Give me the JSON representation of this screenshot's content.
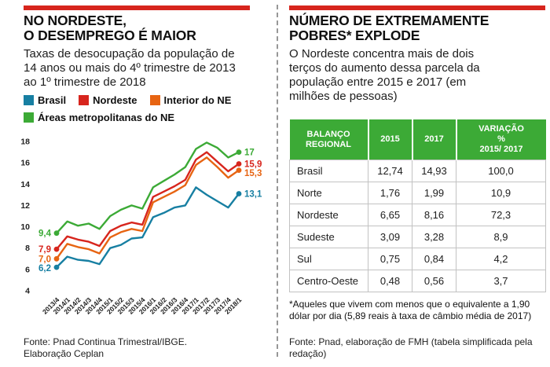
{
  "left_panel": {
    "title_line1": "NO NORDESTE,",
    "title_line2": "O DESEMPREGO É MAIOR",
    "subtitle": "Taxas de desocupação da população de 14 anos ou mais do 4º trimestre de 2013 ao 1º trimestre de 2018",
    "source_line1": "Fonte: Pnad Continua Trimestral/IBGE.",
    "source_line2": "Elaboração Ceplan"
  },
  "right_panel": {
    "title_line1": "NÚMERO DE EXTREMAMENTE",
    "title_line2": "POBRES* EXPLODE",
    "subtitle": "O Nordeste concentra mais de dois terços do aumento dessa parcela da população entre 2015 e 2017 (em milhões de pessoas)",
    "footnote": "*Aqueles que vivem com menos que o equivalente a 1,90 dólar por dia (5,89 reais à taxa de câmbio média de 2017)",
    "source": "Fonte: Pnad, elaboração de FMH (tabela simplificada pela redação)"
  },
  "colors": {
    "accent_red": "#d7251d",
    "table_green": "#3caa36",
    "brasil_teal": "#177fa2",
    "nordeste_red": "#d7251d",
    "interior_orange": "#e76412",
    "metropolitanas_green": "#3caa36",
    "divider_gray": "#979797"
  },
  "chart_data": [
    {
      "type": "line",
      "title": "NO NORDESTE, O DESEMPREGO É MAIOR",
      "xlabel": "",
      "ylabel": "",
      "ylim": [
        4,
        18
      ],
      "yticks": [
        4,
        6,
        8,
        10,
        12,
        14,
        16,
        18
      ],
      "grid": false,
      "legend_position": "top",
      "categories": [
        "2013/4",
        "2014/1",
        "2014/2",
        "2014/3",
        "2014/4",
        "2015/1",
        "2015/2",
        "2015/3",
        "2015/4",
        "2016/1",
        "2016/2",
        "2016/3",
        "2016/4",
        "2017/1",
        "2017/2",
        "2017/3",
        "2017/4",
        "2018/1"
      ],
      "series": [
        {
          "name": "Brasil",
          "color": "#177fa2",
          "start_label": "6,2",
          "end_label": "13,1",
          "values": [
            6.2,
            7.2,
            6.9,
            6.8,
            6.5,
            8.0,
            8.3,
            8.9,
            9.0,
            10.9,
            11.3,
            11.8,
            12.0,
            13.7,
            13.0,
            12.4,
            11.8,
            13.1
          ]
        },
        {
          "name": "Nordeste",
          "color": "#d7251d",
          "start_label": "7,9",
          "end_label": "15,9",
          "values": [
            7.9,
            9.1,
            8.8,
            8.6,
            8.2,
            9.6,
            10.1,
            10.4,
            10.2,
            12.8,
            13.3,
            13.8,
            14.4,
            16.3,
            17.0,
            16.1,
            15.2,
            15.9
          ]
        },
        {
          "name": "Interior do NE",
          "color": "#e76412",
          "start_label": "7,0",
          "end_label": "15,3",
          "values": [
            7.0,
            8.4,
            8.1,
            7.9,
            7.5,
            9.0,
            9.5,
            9.8,
            9.6,
            12.3,
            12.8,
            13.3,
            13.9,
            15.8,
            16.5,
            15.6,
            14.6,
            15.3
          ]
        },
        {
          "name": "Áreas metropolitanas do NE",
          "color": "#3caa36",
          "start_label": "9,4",
          "end_label": "17",
          "values": [
            9.4,
            10.5,
            10.1,
            10.3,
            9.8,
            11.0,
            11.6,
            12.0,
            11.7,
            13.7,
            14.3,
            14.9,
            15.6,
            17.3,
            17.9,
            17.4,
            16.5,
            17.0
          ]
        }
      ]
    },
    {
      "type": "table",
      "title": "NÚMERO DE EXTREMAMENTE POBRES* EXPLODE",
      "headers": [
        "BALANÇO\nREGIONAL",
        "2015",
        "2017",
        "VARIAÇÃO\n%\n2015/ 2017"
      ],
      "rows": [
        [
          "Brasil",
          "12,74",
          "14,93",
          "100,0"
        ],
        [
          "Norte",
          "1,76",
          "1,99",
          "10,9"
        ],
        [
          "Nordeste",
          "6,65",
          "8,16",
          "72,3"
        ],
        [
          "Sudeste",
          "3,09",
          "3,28",
          "8,9"
        ],
        [
          "Sul",
          "0,75",
          "0,84",
          "4,2"
        ],
        [
          "Centro-Oeste",
          "0,48",
          "0,56",
          "3,7"
        ]
      ]
    }
  ]
}
